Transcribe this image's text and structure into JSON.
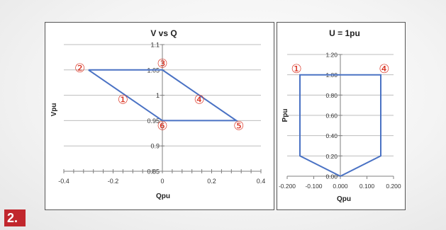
{
  "figure_label": "2.",
  "colors": {
    "line": "#4a72c4",
    "marker": "#d9301f",
    "grid": "#bdbdbd",
    "axis": "#7f7f7f",
    "badge": "#c1272d"
  },
  "chart_data": [
    {
      "type": "line",
      "title": "V vs Q",
      "xlabel": "Qpu",
      "ylabel": "Vpu",
      "xlim": [
        -0.4,
        0.4
      ],
      "ylim": [
        0.85,
        1.1
      ],
      "x_ticks": [
        -0.4,
        -0.2,
        0,
        0.2,
        0.4
      ],
      "x_tick_labels": [
        "-0.4",
        "-0.2",
        "0",
        "0.2",
        "0.4"
      ],
      "y_ticks": [
        0.85,
        0.9,
        0.95,
        1,
        1.05,
        1.1
      ],
      "y_tick_labels": [
        "0.85",
        "0.9",
        "0.95",
        "1",
        "1.05",
        "1.1"
      ],
      "grid": true,
      "series": [
        {
          "x": [
            -0.3,
            0.0,
            0.3,
            0.0,
            -0.3
          ],
          "y": [
            1.05,
            1.05,
            0.95,
            0.95,
            1.05
          ]
        }
      ],
      "annotations": [
        {
          "text": "①",
          "x": -0.16,
          "y": 0.992
        },
        {
          "text": "②",
          "x": -0.335,
          "y": 1.054
        },
        {
          "text": "③",
          "x": 0.0,
          "y": 1.063
        },
        {
          "text": "④",
          "x": 0.15,
          "y": 0.992
        },
        {
          "text": "⑤",
          "x": 0.31,
          "y": 0.94
        },
        {
          "text": "⑥",
          "x": 0.0,
          "y": 0.94
        }
      ]
    },
    {
      "type": "line",
      "title": "U = 1pu",
      "xlabel": "Qpu",
      "ylabel": "Ppu",
      "xlim": [
        -0.2,
        0.2
      ],
      "ylim": [
        0.0,
        1.2
      ],
      "x_ticks": [
        -0.2,
        -0.1,
        0,
        0.1,
        0.2
      ],
      "x_tick_labels": [
        "-0.200",
        "-0.100",
        "0.000",
        "0.100",
        "0.200"
      ],
      "y_ticks": [
        0,
        0.2,
        0.4,
        0.6,
        0.8,
        1.0,
        1.2
      ],
      "y_tick_labels": [
        "0.00",
        "0.20",
        "0.40",
        "0.60",
        "0.80",
        "1.00",
        "1.20"
      ],
      "grid": true,
      "series": [
        {
          "x": [
            0.0,
            -0.152,
            -0.152,
            0.152,
            0.152,
            0.0
          ],
          "y": [
            0.0,
            0.2,
            1.0,
            1.0,
            0.2,
            0.0
          ]
        }
      ],
      "annotations": [
        {
          "text": "①",
          "x": -0.165,
          "y": 1.06
        },
        {
          "text": "④",
          "x": 0.165,
          "y": 1.06
        }
      ]
    }
  ]
}
